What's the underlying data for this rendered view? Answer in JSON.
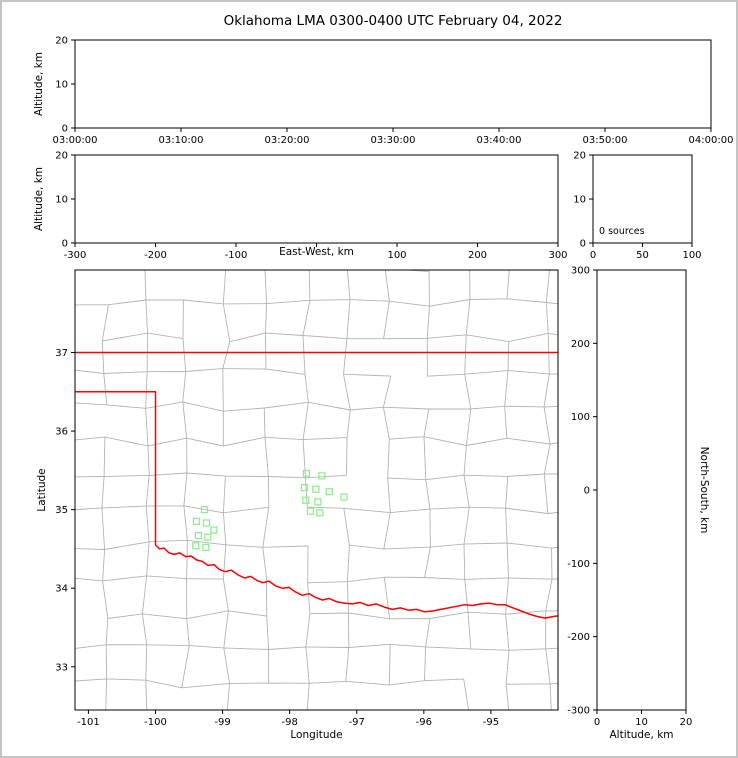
{
  "title": "Oklahoma LMA 0300-0400 UTC February 04, 2022",
  "colors": {
    "background": "#ffffff",
    "figure_border": "#c4c4c4",
    "axes": "#000000",
    "tick_text": "#000000",
    "county_lines": "#b3b3b3",
    "state_border": "#ff0000",
    "station_marker": "#90ee90"
  },
  "chart_data": [
    {
      "id": "altitude-vs-time",
      "type": "scatter",
      "xlabel": "",
      "ylabel": "Altitude, km",
      "xlim": [
        0,
        6
      ],
      "xticks": [
        0,
        1,
        2,
        3,
        4,
        5,
        6
      ],
      "xtick_labels": [
        "03:00:00",
        "03:10:00",
        "03:20:00",
        "03:30:00",
        "03:40:00",
        "03:50:00",
        "04:00:00"
      ],
      "ylim": [
        0,
        20
      ],
      "yticks": [
        0,
        10,
        20
      ],
      "points": []
    },
    {
      "id": "altitude-vs-east-west",
      "type": "scatter",
      "xlabel": "East-West, km",
      "ylabel": "Altitude, km",
      "xlim": [
        -300,
        300
      ],
      "xticks": [
        -300,
        -200,
        -100,
        0,
        100,
        200,
        300
      ],
      "xtick_labels": [
        "-300",
        "-200",
        "-100",
        "",
        "100",
        "200",
        "300"
      ],
      "ylim": [
        0,
        20
      ],
      "yticks": [
        0,
        10,
        20
      ],
      "points": []
    },
    {
      "id": "source-count-histogram",
      "type": "line",
      "annotation": "0 sources",
      "xlim": [
        0,
        100
      ],
      "xticks": [
        0,
        50,
        100
      ],
      "xtick_labels": [
        "0",
        "50",
        "100"
      ],
      "ylim": [
        0,
        20
      ],
      "yticks": [
        0,
        10,
        20
      ],
      "points": []
    },
    {
      "id": "plan-view-map",
      "type": "scatter",
      "xlabel": "Longitude",
      "ylabel": "Latitude",
      "xlim": [
        -101.2,
        -94.0
      ],
      "xticks": [
        -101,
        -100,
        -99,
        -98,
        -97,
        -96,
        -95
      ],
      "xtick_labels": [
        "-101",
        "-100",
        "-99",
        "-98",
        "-97",
        "-96",
        "-95"
      ],
      "ylim": [
        32.45,
        38.05
      ],
      "yticks": [
        33,
        34,
        35,
        36,
        37
      ],
      "stations": [
        [
          -97.75,
          35.46
        ],
        [
          -97.52,
          35.43
        ],
        [
          -97.78,
          35.28
        ],
        [
          -97.61,
          35.26
        ],
        [
          -97.41,
          35.23
        ],
        [
          -97.19,
          35.16
        ],
        [
          -97.76,
          35.12
        ],
        [
          -97.58,
          35.1
        ],
        [
          -97.69,
          34.98
        ],
        [
          -97.55,
          34.96
        ],
        [
          -99.27,
          35.0
        ],
        [
          -99.39,
          34.85
        ],
        [
          -99.24,
          34.83
        ],
        [
          -99.13,
          34.74
        ],
        [
          -99.36,
          34.67
        ],
        [
          -99.22,
          34.65
        ],
        [
          -99.4,
          34.54
        ],
        [
          -99.25,
          34.52
        ]
      ],
      "state_border": [
        [
          [
            -101.2,
            37.0
          ],
          [
            -94.0,
            37.0
          ]
        ],
        [
          [
            -101.2,
            36.5
          ],
          [
            -100.0,
            36.5
          ],
          [
            -100.0,
            34.55
          ],
          [
            -99.94,
            34.5
          ],
          [
            -99.87,
            34.51
          ],
          [
            -99.8,
            34.45
          ],
          [
            -99.72,
            34.43
          ],
          [
            -99.64,
            34.45
          ],
          [
            -99.55,
            34.4
          ],
          [
            -99.47,
            34.41
          ],
          [
            -99.39,
            34.36
          ],
          [
            -99.3,
            34.34
          ],
          [
            -99.22,
            34.29
          ],
          [
            -99.13,
            34.3
          ],
          [
            -99.05,
            34.24
          ],
          [
            -98.96,
            34.21
          ],
          [
            -98.87,
            34.23
          ],
          [
            -98.77,
            34.17
          ],
          [
            -98.67,
            34.13
          ],
          [
            -98.58,
            34.15
          ],
          [
            -98.49,
            34.1
          ],
          [
            -98.4,
            34.07
          ],
          [
            -98.31,
            34.09
          ],
          [
            -98.21,
            34.03
          ],
          [
            -98.11,
            34.0
          ],
          [
            -98.01,
            34.01
          ],
          [
            -97.91,
            33.95
          ],
          [
            -97.81,
            33.91
          ],
          [
            -97.71,
            33.93
          ],
          [
            -97.61,
            33.88
          ],
          [
            -97.51,
            33.85
          ],
          [
            -97.41,
            33.87
          ],
          [
            -97.31,
            33.83
          ],
          [
            -97.19,
            33.81
          ],
          [
            -97.07,
            33.8
          ],
          [
            -96.95,
            33.82
          ],
          [
            -96.83,
            33.78
          ],
          [
            -96.71,
            33.8
          ],
          [
            -96.59,
            33.76
          ],
          [
            -96.47,
            33.73
          ],
          [
            -96.35,
            33.75
          ],
          [
            -96.23,
            33.72
          ],
          [
            -96.11,
            33.73
          ],
          [
            -95.99,
            33.7
          ],
          [
            -95.87,
            33.71
          ],
          [
            -95.75,
            33.73
          ],
          [
            -95.63,
            33.75
          ],
          [
            -95.51,
            33.77
          ],
          [
            -95.39,
            33.79
          ],
          [
            -95.27,
            33.78
          ],
          [
            -95.15,
            33.8
          ],
          [
            -95.03,
            33.81
          ],
          [
            -94.91,
            33.79
          ],
          [
            -94.79,
            33.79
          ],
          [
            -94.67,
            33.75
          ],
          [
            -94.55,
            33.71
          ],
          [
            -94.43,
            33.67
          ],
          [
            -94.31,
            33.64
          ],
          [
            -94.19,
            33.62
          ],
          [
            -94.07,
            33.64
          ],
          [
            -93.98,
            33.65
          ]
        ]
      ],
      "county_grid": {
        "lon_start": -101.35,
        "lat_start": 32.35,
        "lon_step": 0.6,
        "lat_step": 0.44,
        "jitter": 0.12,
        "skip_fraction": 0.1,
        "seed": 7
      }
    },
    {
      "id": "altitude-vs-north-south",
      "type": "scatter",
      "xlabel": "Altitude, km",
      "ylabel": "North-South, km",
      "xlim": [
        0,
        20
      ],
      "xticks": [
        0,
        10,
        20
      ],
      "xtick_labels": [
        "0",
        "10",
        "20"
      ],
      "ylim": [
        -300,
        300
      ],
      "yticks": [
        -300,
        -200,
        -100,
        0,
        100,
        200,
        300
      ],
      "points": []
    }
  ]
}
